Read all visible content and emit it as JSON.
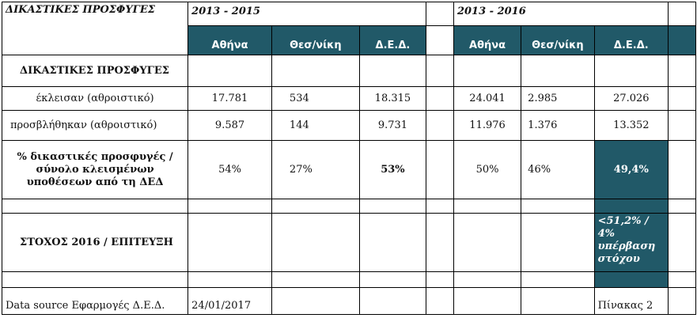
{
  "header": {
    "corner_title": "ΔΙΚΑΣΤΙΚΕΣ ΠΡΟΣΦΥΓΕΣ",
    "period_a": "2013 - 2015",
    "period_b": "2013 - 2016",
    "cols_a": [
      "Αθήνα",
      "Θεσ/νίκη",
      "Δ.Ε.Δ."
    ],
    "cols_b": [
      "Αθήνα",
      "Θεσ/νίκη",
      "Δ.Ε.Δ."
    ]
  },
  "rows": {
    "section_title": "ΔΙΚΑΣΤΙΚΕΣ ΠΡΟΣΦΥΓΕΣ",
    "closed": {
      "label": "έκλεισαν (αθροιστικό)",
      "a": [
        "17.781",
        "534",
        "18.315"
      ],
      "b": [
        "24.041",
        "2.985",
        "27.026"
      ]
    },
    "appealed": {
      "label": "προσβλήθηκαν (αθροιστικό)",
      "a": [
        "9.587",
        "144",
        "9.731"
      ],
      "b": [
        "11.976",
        "1.376",
        "13.352"
      ]
    },
    "percent": {
      "label": "% δικαστικές προσφυγές / σύνολο κλεισμένων υποθέσεων από τη ΔΕΔ",
      "a": [
        "54%",
        "27%",
        "53%"
      ],
      "b": [
        "50%",
        "46%",
        "49,4%"
      ]
    },
    "target": {
      "label": "ΣΤΟΧΟΣ 2016 / ΕΠΙΤΕΥΞΗ",
      "value": "<51,2% / 4% υπέρβαση στόχου"
    },
    "footer": {
      "source": "Data source Εφαρμογές Δ.Ε.Δ.",
      "date": "24/01/2017",
      "table_no": "Πίνακας 2"
    }
  },
  "colors": {
    "header_fill": "#215968",
    "header_text": "#ffffff",
    "grid_line": "#000000"
  }
}
